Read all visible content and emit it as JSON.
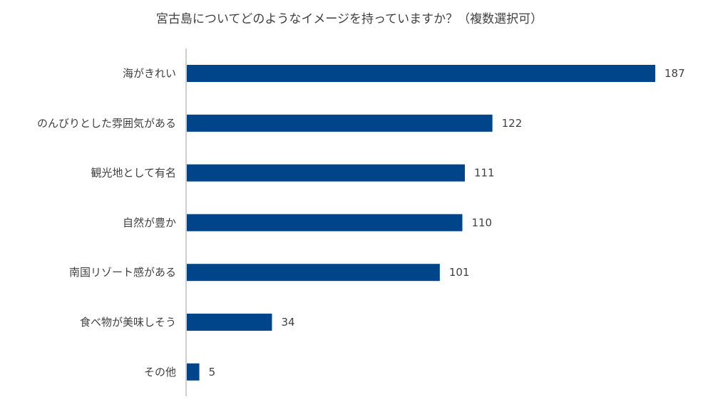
{
  "chart_data": {
    "type": "bar",
    "orientation": "horizontal",
    "title": "宮古島についてどのようなイメージを持っていますか？（複数選択可）",
    "categories": [
      "海がきれい",
      "のんびりとした雰囲気がある",
      "観光地として有名",
      "自然が豊か",
      "南国リゾート感がある",
      "食べ物が美味しそう",
      "その他"
    ],
    "values": [
      187,
      122,
      111,
      110,
      101,
      34,
      5
    ],
    "xlim": [
      0,
      187
    ],
    "grid": false,
    "bar_color": "#004589",
    "axis_color": "#bfbfbf"
  }
}
